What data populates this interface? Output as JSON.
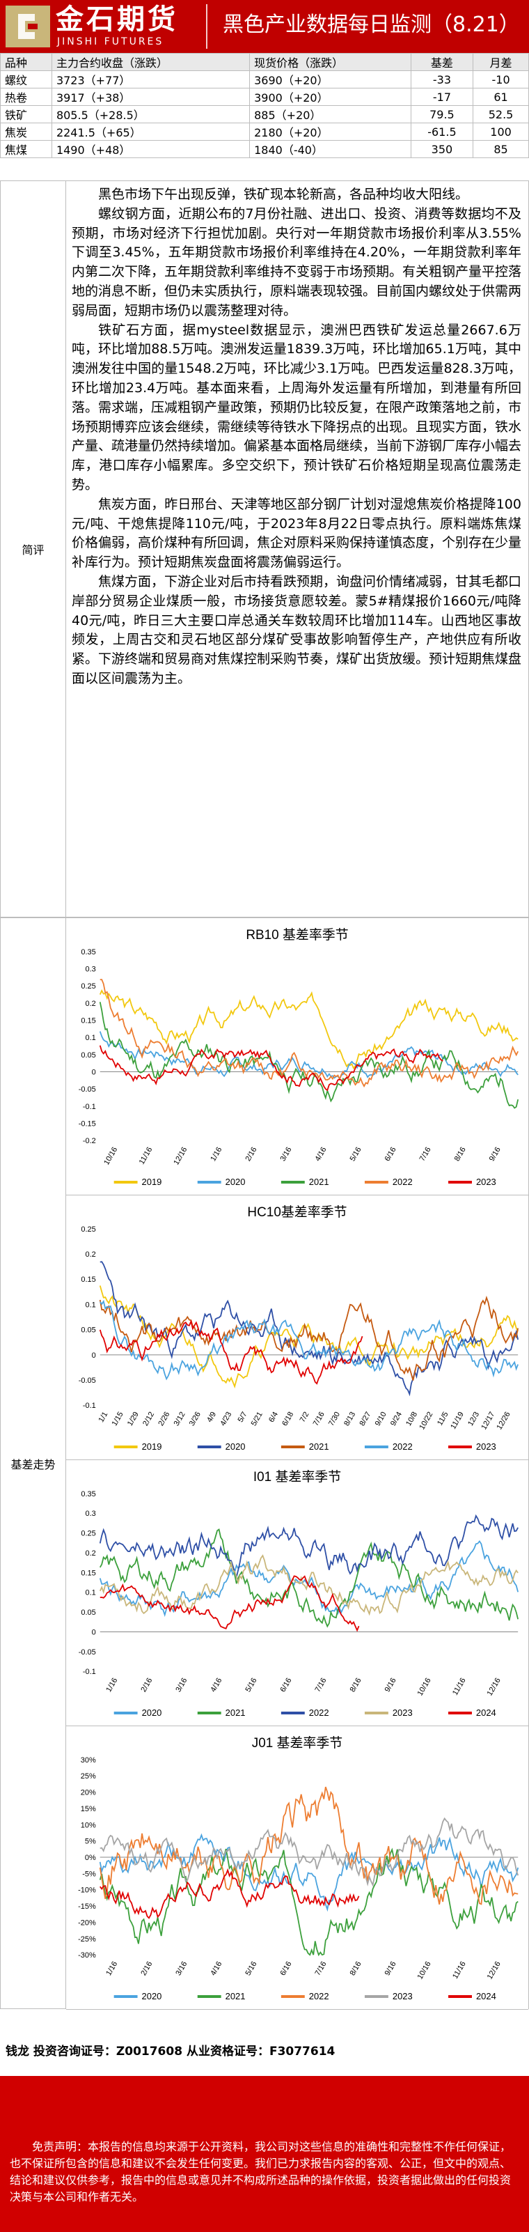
{
  "header": {
    "logo_cn": "金石期货",
    "logo_en": "JINSHI FUTURES",
    "title": "黑色产业数据每日监测（8.21）",
    "brand_color": "#c00000"
  },
  "quotes": {
    "columns": [
      "品种",
      "主力合约收盘（涨跌）",
      "现货价格（涨跌）",
      "基差",
      "月差"
    ],
    "rows": [
      [
        "螺纹",
        "3723（+77）",
        "3690（+20）",
        "-33",
        "-10"
      ],
      [
        "热卷",
        "3917（+38）",
        "3900（+20）",
        "-17",
        "61"
      ],
      [
        "铁矿",
        "805.5（+28.5）",
        "885（+20）",
        "79.5",
        "52.5"
      ],
      [
        "焦炭",
        "2241.5（+65）",
        "2180（+20）",
        "-61.5",
        "100"
      ],
      [
        "焦煤",
        "1490（+48）",
        "1840（-40）",
        "350",
        "85"
      ]
    ]
  },
  "review": {
    "label": "简评",
    "paragraphs": [
      "黑色市场下午出现反弹，铁矿现本轮新高，各品种均收大阳线。",
      "螺纹钢方面，近期公布的7月份社融、进出口、投资、消费等数据均不及预期，市场对经济下行担忧加剧。央行对一年期贷款市场报价利率从3.55%下调至3.45%，五年期贷款市场报价利率维持在4.20%，一年期贷款利率年内第二次下降，五年期贷款利率维持不变弱于市场预期。有关粗钢产量平控落地的消息不断，但仍未实质执行，原料端表现较强。目前国内螺纹处于供需两弱局面，短期市场仍以震荡整理对待。",
      "铁矿石方面，据mysteel数据显示，澳洲巴西铁矿发运总量2667.6万吨，环比增加88.5万吨。澳洲发运量1839.3万吨，环比增加65.1万吨，其中澳洲发往中国的量1548.2万吨，环比减少3.1万吨。巴西发运量828.3万吨，环比增加23.4万吨。基本面来看，上周海外发运量有所增加，到港量有所回落。需求端，压减粗钢产量政策，预期仍比较反复，在限产政策落地之前，市场预期博弈应该会继续，需继续等待铁水下降拐点的出现。且现实方面，铁水产量、疏港量仍然持续增加。偏紧基本面格局继续，当前下游钢厂库存小幅去库，港口库存小幅累库。多空交织下，预计铁矿石价格短期呈现高位震荡走势。",
      "焦炭方面，昨日邢台、天津等地区部分钢厂计划对湿熄焦炭价格提降100元/吨、干熄焦提降110元/吨，于2023年8月22日零点执行。原料端炼焦煤价格偏弱，高价煤种有所回调，焦企对原料采购保持谨慎态度，个别存在少量补库行为。预计短期焦炭盘面将震荡偏弱运行。",
      "焦煤方面，下游企业对后市持看跌预期，询盘问价情绪减弱，甘其毛都口岸部分贸易企业煤质一般，市场接货意愿较差。蒙5#精煤报价1660元/吨降40元/吨，昨日三大主要口岸总通关车数较周环比增加114车。山西地区事故频发，上周古交和灵石地区部分煤矿受事故影响暂停生产，产地供应有所收紧。下游终端和贸易商对焦煤控制采购节奏，煤矿出货放缓。预计短期焦煤盘面以区间震荡为主。"
    ]
  },
  "basis": {
    "label": "基差走势",
    "charts": [
      {
        "title": "RB10 基差率季节",
        "ymin": -0.2,
        "ymax": 0.35,
        "yticks": [
          "0.35",
          "0.3",
          "0.25",
          "0.2",
          "0.15",
          "0.1",
          "0.05",
          "0",
          "-0.05",
          "-0.1",
          "-0.15",
          "-0.2"
        ],
        "yvals": [
          0.35,
          0.3,
          0.25,
          0.2,
          0.15,
          0.1,
          0.05,
          0,
          -0.05,
          -0.1,
          -0.15,
          -0.2
        ],
        "xticks": [
          "10/16",
          "11/16",
          "12/16",
          "1/16",
          "2/16",
          "3/16",
          "4/16",
          "5/16",
          "6/16",
          "7/16",
          "8/16",
          "9/16"
        ],
        "series": [
          {
            "name": "2019",
            "color": "#f2c80f",
            "base": 0.15,
            "start": 0.24,
            "amp": 0.04,
            "len": 1.0,
            "seed": 3
          },
          {
            "name": "2020",
            "color": "#4aa3df",
            "base": 0.03,
            "start": 0.12,
            "amp": 0.03,
            "len": 1.0,
            "seed": 7
          },
          {
            "name": "2021",
            "color": "#3ca03c",
            "base": 0.0,
            "start": 0.2,
            "amp": 0.05,
            "len": 1.0,
            "seed": 11
          },
          {
            "name": "2022",
            "color": "#ed7d31",
            "base": 0.02,
            "start": 0.28,
            "amp": 0.04,
            "len": 1.0,
            "seed": 13
          },
          {
            "name": "2023",
            "color": "#e00000",
            "base": 0.02,
            "start": 0.07,
            "amp": 0.03,
            "len": 0.82,
            "seed": 17
          }
        ]
      },
      {
        "title": "HC10基差率季节",
        "ymin": -0.1,
        "ymax": 0.25,
        "yticks": [
          "0.25",
          "0.2",
          "0.15",
          "0.1",
          "0.05",
          "0",
          "-0.05",
          "-0.1"
        ],
        "yvals": [
          0.25,
          0.2,
          0.15,
          0.1,
          0.05,
          0,
          -0.05,
          -0.1
        ],
        "xticks": [
          "1/1",
          "1/15",
          "1/29",
          "2/12",
          "2/26",
          "3/12",
          "3/26",
          "4/9",
          "4/23",
          "5/7",
          "5/21",
          "6/4",
          "6/18",
          "7/2",
          "7/16",
          "7/30",
          "8/13",
          "8/27",
          "9/10",
          "9/24",
          "10/8",
          "10/22",
          "11/5",
          "11/19",
          "12/3",
          "12/17",
          "12/26"
        ],
        "series": [
          {
            "name": "2019",
            "color": "#f2c80f",
            "base": 0.02,
            "start": 0.15,
            "amp": 0.03,
            "len": 1.0,
            "seed": 21
          },
          {
            "name": "2020",
            "color": "#2e4fa6",
            "base": 0.02,
            "start": 0.18,
            "amp": 0.04,
            "len": 1.0,
            "seed": 23
          },
          {
            "name": "2021",
            "color": "#c55a11",
            "base": 0.03,
            "start": 0.12,
            "amp": 0.04,
            "len": 1.0,
            "seed": 27
          },
          {
            "name": "2022",
            "color": "#4aa3df",
            "base": 0.0,
            "start": 0.1,
            "amp": 0.03,
            "len": 1.0,
            "seed": 29
          },
          {
            "name": "2023",
            "color": "#e00000",
            "base": 0.0,
            "start": 0.05,
            "amp": 0.03,
            "len": 0.63,
            "seed": 31
          }
        ]
      },
      {
        "title": "I01 基差率季节",
        "ymin": -0.1,
        "ymax": 0.35,
        "yticks": [
          "0.35",
          "0.3",
          "0.25",
          "0.2",
          "0.15",
          "0.1",
          "0.05",
          "0",
          "-0.05",
          "-0.1"
        ],
        "yvals": [
          0.35,
          0.3,
          0.25,
          0.2,
          0.15,
          0.1,
          0.05,
          0,
          -0.05,
          -0.1
        ],
        "xticks": [
          "1/16",
          "2/16",
          "3/16",
          "4/16",
          "5/16",
          "6/16",
          "7/16",
          "8/16",
          "9/16",
          "10/16",
          "11/16",
          "12/16"
        ],
        "series": [
          {
            "name": "2020",
            "color": "#4aa3df",
            "base": 0.1,
            "start": 0.12,
            "amp": 0.04,
            "len": 1.0,
            "seed": 41
          },
          {
            "name": "2021",
            "color": "#3ca03c",
            "base": 0.14,
            "start": 0.16,
            "amp": 0.05,
            "len": 1.0,
            "seed": 43
          },
          {
            "name": "2022",
            "color": "#2e4fa6",
            "base": 0.22,
            "start": 0.2,
            "amp": 0.05,
            "len": 1.0,
            "seed": 47
          },
          {
            "name": "2023",
            "color": "#c9b67a",
            "base": 0.12,
            "start": 0.12,
            "amp": 0.04,
            "len": 1.0,
            "seed": 53
          },
          {
            "name": "2024",
            "color": "#e00000",
            "base": 0.08,
            "start": 0.1,
            "amp": 0.03,
            "len": 0.62,
            "seed": 59
          }
        ]
      },
      {
        "title": "J01 基差率季节",
        "ymin": -0.3,
        "ymax": 0.3,
        "yticks": [
          "30%",
          "25%",
          "20%",
          "15%",
          "10%",
          "5%",
          "0%",
          "-5%",
          "-10%",
          "-15%",
          "-20%",
          "-25%",
          "-30%"
        ],
        "yvals": [
          0.3,
          0.25,
          0.2,
          0.15,
          0.1,
          0.05,
          0,
          -0.05,
          -0.1,
          -0.15,
          -0.2,
          -0.25,
          -0.3
        ],
        "xticks": [
          "1/16",
          "2/16",
          "3/16",
          "4/16",
          "5/16",
          "6/16",
          "7/16",
          "8/16",
          "9/16",
          "10/16",
          "11/16",
          "12/16"
        ],
        "series": [
          {
            "name": "2020",
            "color": "#4aa3df",
            "base": -0.05,
            "start": -0.02,
            "amp": 0.06,
            "len": 1.0,
            "seed": 61
          },
          {
            "name": "2021",
            "color": "#3ca03c",
            "base": -0.1,
            "start": -0.08,
            "amp": 0.08,
            "len": 1.0,
            "seed": 67
          },
          {
            "name": "2022",
            "color": "#ed7d31",
            "base": 0.04,
            "start": 0.0,
            "amp": 0.1,
            "len": 1.0,
            "seed": 71
          },
          {
            "name": "2023",
            "color": "#a5a5a5",
            "base": -0.02,
            "start": 0.02,
            "amp": 0.06,
            "len": 1.0,
            "seed": 73
          },
          {
            "name": "2024",
            "color": "#e00000",
            "base": -0.1,
            "start": -0.1,
            "amp": 0.05,
            "len": 0.62,
            "seed": 79
          }
        ]
      }
    ]
  },
  "footer": {
    "analyst": "钱龙 投资咨询证号：Z0017608 从业资格证号：F3077614"
  },
  "disclaimer": {
    "text": "免责声明：本报告的信息均来源于公开资料，我公司对这些信息的准确性和完整性不作任何保证，也不保证所包含的信息和建议不会发生任何变更。我们已力求报告内容的客观、公正，但文中的观点、结论和建议仅供参考，报告中的信息或意见并不构成所述品种的操作依据，投资者据此做出的任何投资决策与本公司和作者无关。"
  }
}
